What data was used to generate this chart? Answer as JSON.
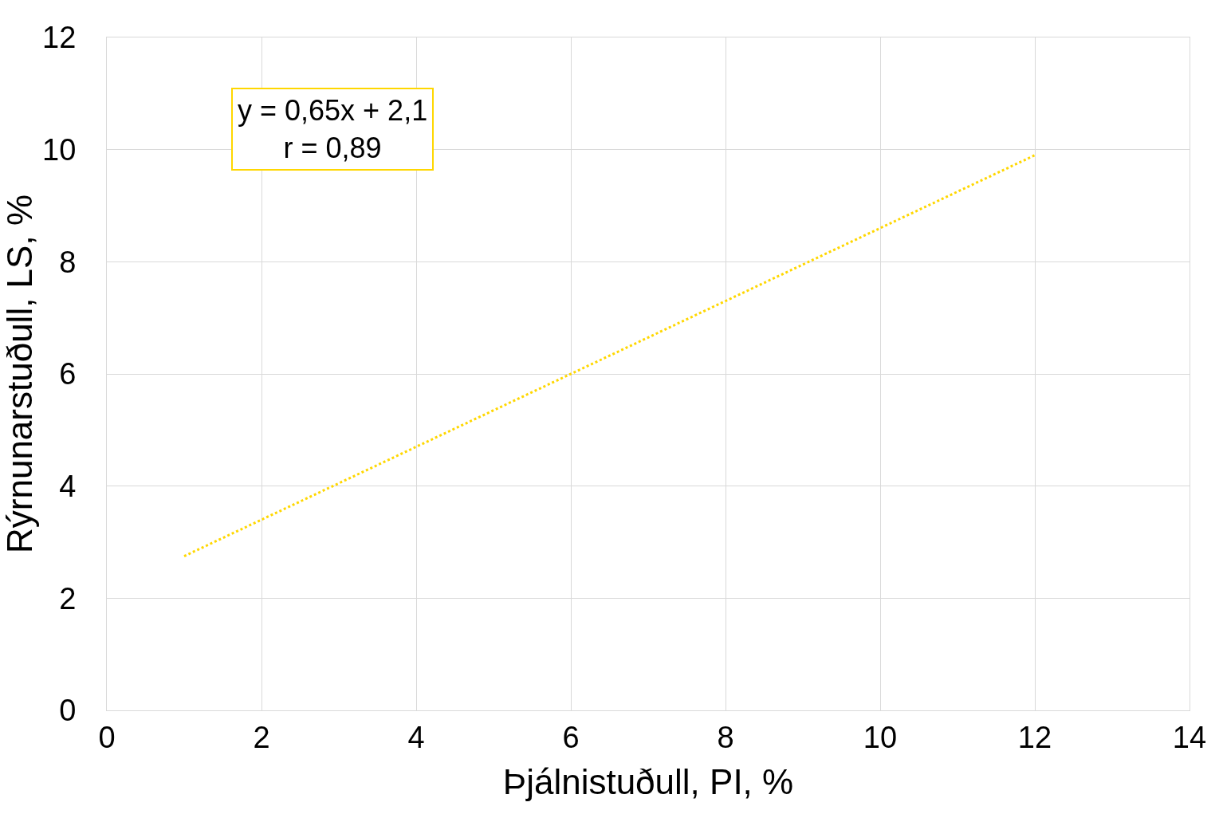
{
  "chart_data": {
    "type": "line",
    "xlabel": "Þjálnistuðull, PI, %",
    "ylabel": "Rýrnunarstuðull, LS, %",
    "annotations": [
      "y = 0,65x + 2,1\nr = 0,89"
    ],
    "series": [
      {
        "x": [
          1,
          12
        ],
        "values": [
          2.75,
          9.9
        ],
        "color": "#ffd700"
      }
    ],
    "xlim": [
      0,
      14
    ],
    "xticks": [
      0,
      2,
      4,
      6,
      8,
      10,
      12,
      14
    ],
    "ylim": [
      0,
      12
    ],
    "yticks": [
      0,
      2,
      4,
      6,
      8,
      10,
      12
    ],
    "grid": true,
    "marker": "none",
    "line_style": "dotted"
  }
}
